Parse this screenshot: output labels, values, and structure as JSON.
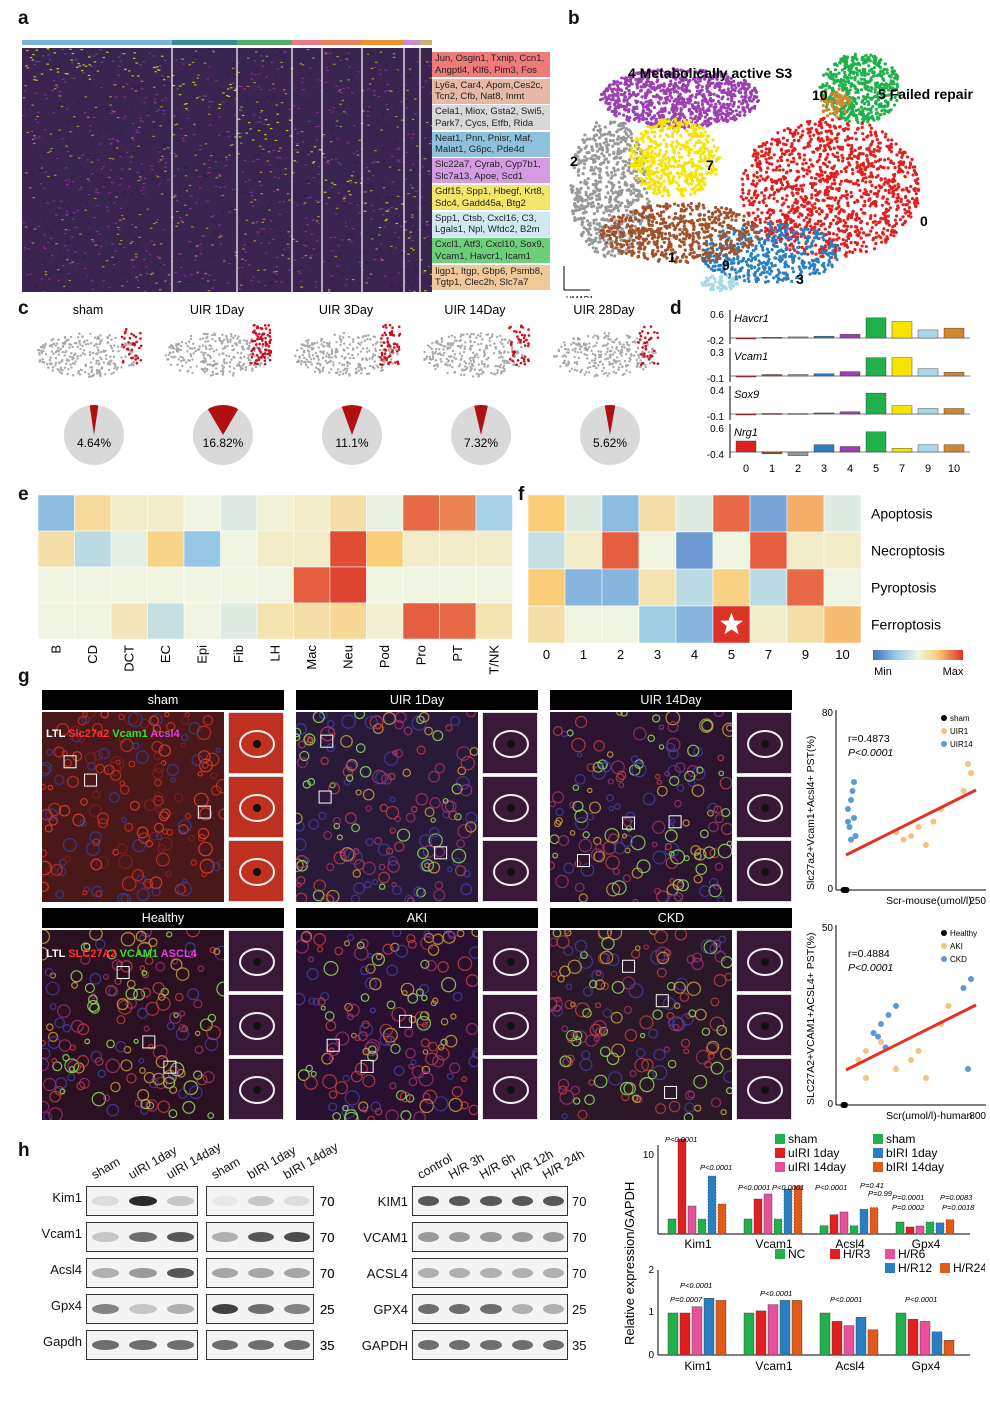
{
  "panels": {
    "a": "a",
    "b": "b",
    "c": "c",
    "d": "d",
    "e": "e",
    "f": "f",
    "g": "g",
    "h": "h"
  },
  "heatmap_genes": [
    {
      "text": "Jun, Osgin1, Txnip, Ccn1, Angptl4, Klf6, Pim3, Fos",
      "color": "#f07a7a"
    },
    {
      "text": "Ly6a, Car4, Apom,Ces2c, Tcn2, Cfb, Nat8, Inmt",
      "color": "#e8b8a6"
    },
    {
      "text": "Cela1, Miox, Gsta2, Swi5, Park7, Cycs, Etfb, Rida",
      "color": "#d8d8d8"
    },
    {
      "text": "Neat1, Pnn, Pnisr, Maf, Malat1, G6pc, Pde4d",
      "color": "#8ec2dc"
    },
    {
      "text": "Slc22a7, Cyrab, Cyp7b1, Slc7a13, Apoe, Scd1",
      "color": "#d49be0"
    },
    {
      "text": "Gdf15, Spp1, Hbegf, Krt8, Sdc4, Gadd45a, Btg2",
      "color": "#f3e56a"
    },
    {
      "text": "Spp1, Ctsb, Cxcl16, C3, Lgals1, Npl, Wfdc2, B2m",
      "color": "#cfe8f2"
    },
    {
      "text": "Cxcl1, Atf3, Cxcl10, Sox9, Vcam1, Havcr1, Icam1",
      "color": "#6ccf7a"
    },
    {
      "text": "Iigp1, Itgp, Gbp6, Psmb8, Tgtp1, Clec2h, Slc7a7",
      "color": "#f0c89a"
    }
  ],
  "umap": {
    "labels": [
      "4  Metabolically active S3",
      "10",
      "5  Failed repair",
      "2",
      "7",
      "0",
      "1",
      "9",
      "3"
    ],
    "axis_x": "UMAP1",
    "axis_y": "UMAP2"
  },
  "panel_c": {
    "titles": [
      "sham",
      "UIR 1Day",
      "UIR 3Day",
      "UIR 14Day",
      "UIR 28Day"
    ],
    "percents": [
      "4.64%",
      "16.82%",
      "11.1%",
      "7.32%",
      "5.62%"
    ],
    "fractions": [
      0.0464,
      0.1682,
      0.111,
      0.0732,
      0.0562
    ]
  },
  "panel_d": {
    "genes": [
      "Havcr1",
      "Vcam1",
      "Sox9",
      "Nrg1"
    ],
    "ymax": [
      "0.6",
      "0.3",
      "0.4",
      "0.6"
    ],
    "ymin": [
      "-0.2",
      "-0.1",
      "-0.1",
      "-0.4"
    ],
    "clusters": [
      "0",
      "1",
      "2",
      "3",
      "4",
      "5",
      "7",
      "9",
      "10"
    ],
    "colors": [
      "#e02020",
      "#a0522d",
      "#999999",
      "#2a7fc0",
      "#9b40b0",
      "#21b04b",
      "#f5e400",
      "#a8d8ea",
      "#d2862e"
    ],
    "values": [
      [
        0.0,
        0.02,
        0.03,
        0.05,
        0.1,
        0.55,
        0.45,
        0.22,
        0.27
      ],
      [
        0.0,
        0.02,
        0.02,
        0.03,
        0.06,
        0.25,
        0.25,
        0.1,
        0.05
      ],
      [
        0.0,
        0.01,
        0.01,
        0.02,
        0.04,
        0.38,
        0.15,
        0.1,
        0.1
      ],
      [
        0.3,
        -0.05,
        -0.1,
        0.2,
        0.15,
        0.55,
        0.1,
        0.2,
        0.2
      ]
    ]
  },
  "panel_e": {
    "cols": [
      "B",
      "CD",
      "DCT",
      "EC",
      "Epi",
      "Fib",
      "LH",
      "Mac",
      "Neu",
      "Pod",
      "Pro",
      "PT",
      "T/NK"
    ],
    "matrix": [
      [
        0.22,
        0.65,
        0.55,
        0.55,
        0.5,
        0.45,
        0.52,
        0.55,
        0.62,
        0.48,
        0.9,
        0.85,
        0.3
      ],
      [
        0.62,
        0.35,
        0.47,
        0.68,
        0.25,
        0.5,
        0.55,
        0.55,
        0.95,
        0.72,
        0.55,
        0.55,
        0.55
      ],
      [
        0.5,
        0.5,
        0.5,
        0.5,
        0.5,
        0.5,
        0.5,
        0.92,
        0.97,
        0.5,
        0.5,
        0.5,
        0.5
      ],
      [
        0.5,
        0.5,
        0.58,
        0.38,
        0.5,
        0.45,
        0.6,
        0.62,
        0.66,
        0.53,
        0.92,
        0.9,
        0.6
      ]
    ]
  },
  "panel_f": {
    "rows": [
      "Apoptosis",
      "Necroptosis",
      "Pyroptosis",
      "Ferroptosis"
    ],
    "cols": [
      "0",
      "1",
      "2",
      "3",
      "4",
      "5",
      "7",
      "9",
      "10"
    ],
    "matrix": [
      [
        0.72,
        0.45,
        0.22,
        0.62,
        0.45,
        0.9,
        0.15,
        0.78,
        0.45
      ],
      [
        0.38,
        0.55,
        0.92,
        0.5,
        0.12,
        0.5,
        0.92,
        0.55,
        0.55
      ],
      [
        0.72,
        0.2,
        0.2,
        0.6,
        0.35,
        0.7,
        0.35,
        0.9,
        0.5
      ],
      [
        0.62,
        0.5,
        0.5,
        0.28,
        0.2,
        1.0,
        0.55,
        0.62,
        0.75
      ]
    ],
    "legend_min": "Min",
    "legend_max": "Max"
  },
  "panel_g": {
    "top_titles": [
      "sham",
      "UIR 1Day",
      "UIR 14Day"
    ],
    "bottom_titles": [
      "Healthy",
      "AKI",
      "CKD"
    ],
    "stain_top": [
      "LTL ",
      "Slc27a2 ",
      "Vcam1 ",
      "Acsl4"
    ],
    "stain_bottom": [
      "LTL ",
      "SLC27A2 ",
      "VCAM1 ",
      "ASCL4"
    ],
    "scatter_top": {
      "r": "r=0.4873",
      "p": "P<0.0001",
      "ylabel": "Slc27a2+Vcam1+Acsl4+ PST(%)",
      "xlabel": "Scr-mouse(umol/l)",
      "xmax": "250",
      "ymax": "80",
      "zero": "0",
      "legend": [
        "sham",
        "UIR1",
        "UIR14"
      ]
    },
    "scatter_bottom": {
      "r": "r=0.4884",
      "p": "P<0.0001",
      "ylabel": "SLC27A2+VCAM1+ACSL4+ PST(%)",
      "xlabel": "Scr(umol/l)-human",
      "xmax": "800",
      "ymax": "50",
      "zero": "0",
      "legend": [
        "Healthy",
        "AKI",
        "CKD"
      ]
    }
  },
  "panel_h": {
    "blot1_lanes": [
      "sham",
      "uIRI 1day",
      "uIRI 14day"
    ],
    "blot2_lanes": [
      "sham",
      "bIRI 1day",
      "bIRI 14day"
    ],
    "blot3_lanes": [
      "control",
      "H/R 3h",
      "H/R 6h",
      "H/R 12h",
      "H/R 24h"
    ],
    "rows_mouse": [
      "Kim1",
      "Vcam1",
      "Acsl4",
      "Gpx4",
      "Gapdh"
    ],
    "rows_human": [
      "KIM1",
      "VCAM1",
      "ACSL4",
      "GPX4",
      "GAPDH"
    ],
    "mw": [
      "70",
      "70",
      "70",
      "25",
      "35"
    ],
    "bar_ylabel": "Relative expression/GAPDH",
    "bar1_legend": [
      "sham",
      "uIRI 1day",
      "uIRI 14day",
      "sham",
      "bIRI 1day",
      "bIRI 14day"
    ],
    "bar2_legend": [
      "NC",
      "H/R3",
      "H/R6",
      "H/R12",
      "H/R24"
    ],
    "groups": [
      "Kim1",
      "Vcam1",
      "Acsl4",
      "Gpx4"
    ],
    "bar1_pvals": [
      "P<0.0001",
      "P<0.0001",
      "P<0.0001",
      "P<0.0001",
      "P<0.0001",
      "P=0.41",
      "P=0.99",
      "P=0.0001",
      "P=0.0083",
      "P=0.0002",
      "P=0.0018"
    ],
    "bar2_pvals": [
      "P<0.0001",
      "P=0.0007",
      "P<0.0001",
      "P<0.0001",
      "P<0.0001"
    ],
    "y1_ticks": [
      "10"
    ],
    "y2_ticks": [
      "2",
      "1",
      "0"
    ]
  }
}
